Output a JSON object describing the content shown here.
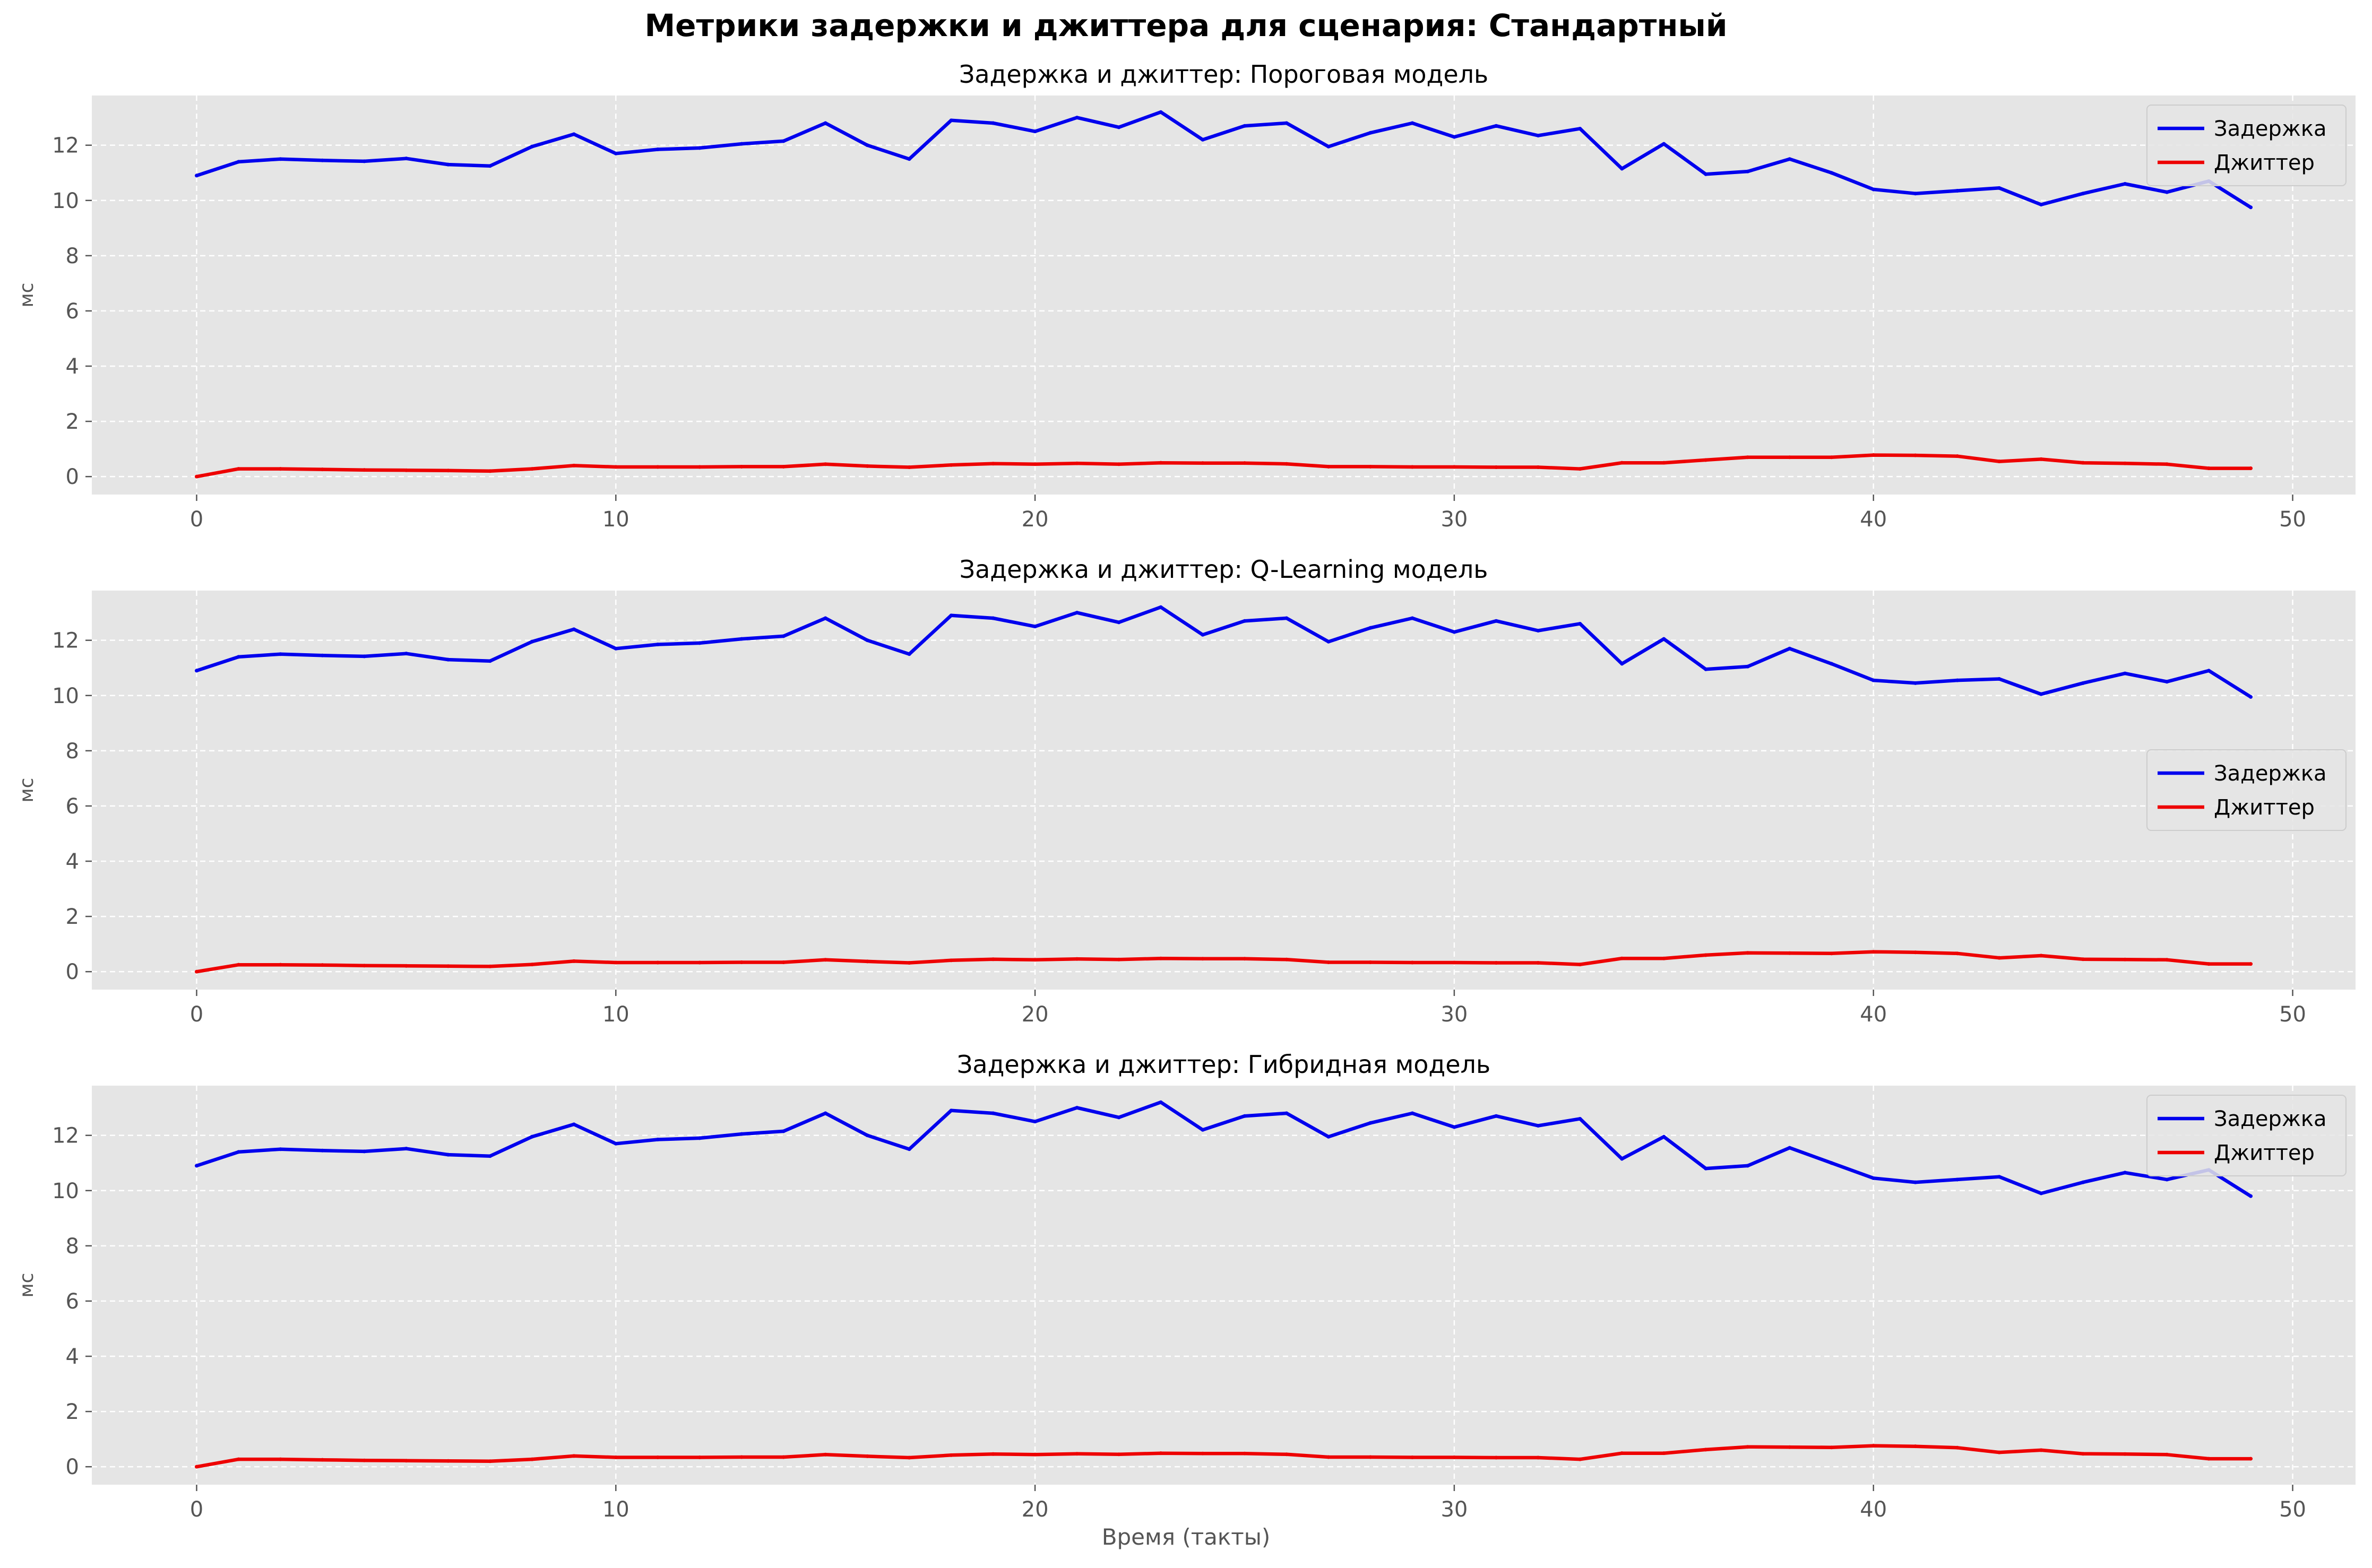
{
  "figure": {
    "title": "Метрики задержки и джиттера для сценария: Стандартный",
    "xlabel": "Время (такты)",
    "ylabel": "мс",
    "colors": {
      "background": "#e5e5e5",
      "grid": "#ffffff",
      "tick_text": "#555555",
      "latency": "#0000ee",
      "jitter": "#ee0000"
    }
  },
  "chart_data": [
    {
      "type": "line",
      "title": "Задержка и джиттер: Пороговая модель",
      "xlim": [
        -2.5,
        51.5
      ],
      "ylim": [
        -0.65,
        13.8
      ],
      "xticks": [
        0,
        10,
        20,
        30,
        40,
        50
      ],
      "yticks": [
        0,
        2,
        4,
        6,
        8,
        10,
        12
      ],
      "grid": true,
      "legend_position": "top-right",
      "x": [
        0,
        1,
        2,
        3,
        4,
        5,
        6,
        7,
        8,
        9,
        10,
        11,
        12,
        13,
        14,
        15,
        16,
        17,
        18,
        19,
        20,
        21,
        22,
        23,
        24,
        25,
        26,
        27,
        28,
        29,
        30,
        31,
        32,
        33,
        34,
        35,
        36,
        37,
        38,
        39,
        40,
        41,
        42,
        43,
        44,
        45,
        46,
        47,
        48,
        49
      ],
      "series": [
        {
          "name": "Задержка",
          "color": "#0000ee",
          "values": [
            10.9,
            11.4,
            11.5,
            11.45,
            11.42,
            11.52,
            11.3,
            11.25,
            11.95,
            12.4,
            11.7,
            11.85,
            11.9,
            12.05,
            12.15,
            12.8,
            12.0,
            11.5,
            12.9,
            12.8,
            12.5,
            13.0,
            12.65,
            13.2,
            12.2,
            12.7,
            12.8,
            11.95,
            12.45,
            12.8,
            12.3,
            12.7,
            12.35,
            12.6,
            11.15,
            12.05,
            10.95,
            11.05,
            11.5,
            11.0,
            10.4,
            10.25,
            10.35,
            10.45,
            9.85,
            10.25,
            10.6,
            10.3,
            10.7,
            9.75
          ]
        },
        {
          "name": "Джиттер",
          "color": "#ee0000",
          "values": [
            0.0,
            0.28,
            0.28,
            0.26,
            0.24,
            0.23,
            0.22,
            0.2,
            0.28,
            0.4,
            0.35,
            0.35,
            0.35,
            0.36,
            0.36,
            0.45,
            0.38,
            0.34,
            0.42,
            0.47,
            0.45,
            0.48,
            0.45,
            0.5,
            0.49,
            0.49,
            0.46,
            0.36,
            0.36,
            0.35,
            0.35,
            0.34,
            0.34,
            0.28,
            0.5,
            0.5,
            0.6,
            0.7,
            0.7,
            0.7,
            0.78,
            0.77,
            0.74,
            0.55,
            0.63,
            0.5,
            0.48,
            0.45,
            0.3,
            0.3
          ]
        }
      ]
    },
    {
      "type": "line",
      "title": "Задержка и джиттер: Q-Learning модель",
      "xlim": [
        -2.5,
        51.5
      ],
      "ylim": [
        -0.65,
        13.8
      ],
      "xticks": [
        0,
        10,
        20,
        30,
        40,
        50
      ],
      "yticks": [
        0,
        2,
        4,
        6,
        8,
        10,
        12
      ],
      "grid": true,
      "legend_position": "center-right",
      "x": [
        0,
        1,
        2,
        3,
        4,
        5,
        6,
        7,
        8,
        9,
        10,
        11,
        12,
        13,
        14,
        15,
        16,
        17,
        18,
        19,
        20,
        21,
        22,
        23,
        24,
        25,
        26,
        27,
        28,
        29,
        30,
        31,
        32,
        33,
        34,
        35,
        36,
        37,
        38,
        39,
        40,
        41,
        42,
        43,
        44,
        45,
        46,
        47,
        48,
        49
      ],
      "series": [
        {
          "name": "Задержка",
          "color": "#0000ee",
          "values": [
            10.9,
            11.4,
            11.5,
            11.45,
            11.42,
            11.52,
            11.3,
            11.25,
            11.95,
            12.4,
            11.7,
            11.85,
            11.9,
            12.05,
            12.15,
            12.8,
            12.0,
            11.5,
            12.9,
            12.8,
            12.5,
            13.0,
            12.65,
            13.2,
            12.2,
            12.7,
            12.8,
            11.95,
            12.45,
            12.8,
            12.3,
            12.7,
            12.35,
            12.6,
            11.15,
            12.05,
            10.95,
            11.05,
            11.7,
            11.15,
            10.55,
            10.45,
            10.55,
            10.6,
            10.05,
            10.45,
            10.8,
            10.5,
            10.9,
            9.95
          ]
        },
        {
          "name": "Джиттер",
          "color": "#ee0000",
          "values": [
            0.0,
            0.25,
            0.25,
            0.24,
            0.22,
            0.21,
            0.2,
            0.19,
            0.26,
            0.38,
            0.33,
            0.33,
            0.33,
            0.34,
            0.34,
            0.43,
            0.37,
            0.32,
            0.41,
            0.45,
            0.43,
            0.46,
            0.44,
            0.48,
            0.47,
            0.47,
            0.44,
            0.34,
            0.34,
            0.33,
            0.33,
            0.32,
            0.32,
            0.26,
            0.48,
            0.48,
            0.6,
            0.68,
            0.67,
            0.66,
            0.72,
            0.7,
            0.66,
            0.5,
            0.58,
            0.45,
            0.44,
            0.43,
            0.28,
            0.28
          ]
        }
      ]
    },
    {
      "type": "line",
      "title": "Задержка и джиттер: Гибридная модель",
      "xlim": [
        -2.5,
        51.5
      ],
      "ylim": [
        -0.65,
        13.8
      ],
      "xticks": [
        0,
        10,
        20,
        30,
        40,
        50
      ],
      "yticks": [
        0,
        2,
        4,
        6,
        8,
        10,
        12
      ],
      "grid": true,
      "legend_position": "top-right",
      "x": [
        0,
        1,
        2,
        3,
        4,
        5,
        6,
        7,
        8,
        9,
        10,
        11,
        12,
        13,
        14,
        15,
        16,
        17,
        18,
        19,
        20,
        21,
        22,
        23,
        24,
        25,
        26,
        27,
        28,
        29,
        30,
        31,
        32,
        33,
        34,
        35,
        36,
        37,
        38,
        39,
        40,
        41,
        42,
        43,
        44,
        45,
        46,
        47,
        48,
        49
      ],
      "series": [
        {
          "name": "Задержка",
          "color": "#0000ee",
          "values": [
            10.9,
            11.4,
            11.5,
            11.45,
            11.42,
            11.52,
            11.3,
            11.25,
            11.95,
            12.4,
            11.7,
            11.85,
            11.9,
            12.05,
            12.15,
            12.8,
            12.0,
            11.5,
            12.9,
            12.8,
            12.5,
            13.0,
            12.65,
            13.2,
            12.2,
            12.7,
            12.8,
            11.95,
            12.45,
            12.8,
            12.3,
            12.7,
            12.35,
            12.6,
            11.15,
            11.95,
            10.8,
            10.9,
            11.55,
            11.0,
            10.45,
            10.3,
            10.4,
            10.5,
            9.9,
            10.3,
            10.65,
            10.4,
            10.75,
            9.8
          ]
        },
        {
          "name": "Джиттер",
          "color": "#ee0000",
          "values": [
            0.0,
            0.27,
            0.27,
            0.25,
            0.23,
            0.22,
            0.21,
            0.2,
            0.27,
            0.39,
            0.34,
            0.34,
            0.34,
            0.35,
            0.35,
            0.44,
            0.38,
            0.33,
            0.42,
            0.46,
            0.44,
            0.47,
            0.45,
            0.49,
            0.48,
            0.48,
            0.45,
            0.35,
            0.35,
            0.34,
            0.34,
            0.33,
            0.33,
            0.27,
            0.49,
            0.49,
            0.62,
            0.72,
            0.71,
            0.7,
            0.76,
            0.74,
            0.69,
            0.52,
            0.6,
            0.47,
            0.46,
            0.44,
            0.29,
            0.29
          ]
        }
      ]
    }
  ]
}
